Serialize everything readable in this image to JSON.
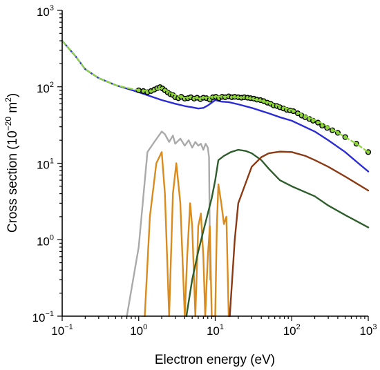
{
  "chart_data": {
    "type": "line",
    "xscale": "log",
    "yscale": "log",
    "xlim": [
      0.1,
      1000
    ],
    "ylim": [
      0.1,
      1000
    ],
    "xlabel": "Electron energy (eV)",
    "ylabel_prefix": "Cross section (10",
    "ylabel_exp1": "−20",
    "ylabel_mid": " m",
    "ylabel_exp2": "2",
    "ylabel_suffix": ")",
    "x_ticks": [
      {
        "base": "10",
        "exp": "−1"
      },
      {
        "base": "10",
        "exp": "0"
      },
      {
        "base": "10",
        "exp": "1"
      },
      {
        "base": "10",
        "exp": "2"
      },
      {
        "base": "10",
        "exp": "3"
      }
    ],
    "y_ticks": [
      {
        "base": "10",
        "exp": "−1"
      },
      {
        "base": "10",
        "exp": "0"
      },
      {
        "base": "10",
        "exp": "1"
      },
      {
        "base": "10",
        "exp": "2"
      },
      {
        "base": "10",
        "exp": "3"
      }
    ],
    "grid": false,
    "series": [
      {
        "color": "#2b2bd6",
        "style": "solid",
        "x": [
          0.1,
          0.15,
          0.2,
          0.3,
          0.5,
          0.7,
          1.0,
          1.5,
          2.0,
          3.0,
          4.0,
          5.0,
          6.0,
          7.0,
          8.0,
          9.0,
          10.0,
          12.0,
          15.0,
          20.0,
          30.0,
          50.0,
          70.0,
          100.0,
          200.0,
          300.0,
          500.0,
          700.0,
          1000.0
        ],
        "y": [
          400,
          250,
          170,
          130,
          105,
          95,
          85,
          74,
          67,
          60,
          56,
          54,
          52,
          53,
          57,
          62,
          67,
          64,
          63,
          59,
          53,
          45,
          40,
          36,
          26,
          20,
          14,
          10.5,
          7.8
        ]
      },
      {
        "color": "#8fd63c",
        "style": "dashed",
        "x": [
          0.1,
          0.15,
          0.2,
          0.3,
          0.5,
          0.7,
          1.0,
          1.5,
          2.0,
          3.0,
          4.0,
          5.0,
          6.0,
          7.0,
          8.0,
          9.0,
          10.0,
          12.0,
          15.0,
          20.0,
          30.0,
          50.0,
          70.0,
          100.0,
          200.0,
          300.0,
          500.0,
          700.0,
          1000.0
        ],
        "y": [
          400,
          250,
          170,
          130,
          105,
          97,
          90,
          88,
          96,
          78,
          72,
          73,
          71,
          72,
          73,
          74,
          74,
          75,
          74,
          73,
          70,
          62,
          56,
          50,
          37,
          30,
          22,
          18,
          14
        ]
      },
      {
        "color": "#000000",
        "style": "markers",
        "marker_fill": "#8fd63c",
        "x": [
          1.0,
          1.15,
          1.3,
          1.45,
          1.6,
          1.75,
          1.9,
          2.05,
          2.2,
          2.4,
          2.6,
          2.8,
          3.0,
          3.3,
          3.6,
          4.0,
          4.4,
          4.8,
          5.3,
          5.8,
          6.4,
          7.0,
          7.7,
          8.5,
          9.3,
          10.2,
          11.2,
          12.3,
          13.5,
          15.0,
          16.5,
          18.0,
          20.0,
          22.0,
          24.0,
          26.5,
          29.0,
          32.0,
          35.0,
          39.0,
          43.0,
          48.0,
          53.0,
          58.0,
          64.0,
          70.0,
          78.0,
          86.0,
          95.0,
          105.0,
          120.0,
          135.0,
          150.0,
          170.0,
          190.0,
          220.0,
          250.0,
          290.0,
          340.0,
          400.0,
          500.0,
          700.0,
          1000.0
        ],
        "y": [
          90,
          88,
          85,
          88,
          92,
          96,
          99,
          95,
          90,
          84,
          80,
          78,
          73,
          71,
          74,
          70,
          71,
          73,
          70,
          72,
          69,
          72,
          71,
          68,
          73,
          74,
          71,
          74,
          73,
          75,
          73,
          74,
          73,
          72,
          73,
          72,
          71,
          70,
          68,
          67,
          65,
          62,
          60,
          57,
          56,
          54,
          52,
          50,
          49,
          48,
          45,
          42,
          40,
          38,
          36,
          34,
          31,
          29,
          27,
          25,
          22,
          18,
          14
        ]
      },
      {
        "color": "#aaaaaa",
        "style": "solid",
        "x": [
          0.7,
          1.0,
          1.3,
          1.6,
          2.0,
          2.2,
          2.5,
          2.8,
          3.0,
          3.5,
          4.0,
          4.5,
          5.0,
          5.5,
          6.0,
          6.5,
          7.0,
          7.5,
          8.0,
          8.3,
          8.6
        ],
        "y": [
          0.1,
          0.8,
          14,
          19,
          26,
          24,
          19,
          23,
          18,
          21,
          17,
          20,
          16,
          19,
          17,
          18,
          15,
          18,
          16,
          12,
          0.3
        ]
      },
      {
        "color": "#d98b1e",
        "style": "solid",
        "x": [
          1.2,
          1.4,
          1.7,
          2.0,
          2.2,
          2.5,
          2.8,
          3.1,
          3.5,
          4.0,
          4.3,
          4.7,
          5.0,
          5.5,
          6.0,
          6.5,
          7.0,
          7.4,
          8.0,
          8.5,
          9.0,
          10.0,
          10.5,
          11.0,
          12.0,
          13.0,
          14.0,
          15.0
        ],
        "y": [
          0.1,
          2,
          10,
          14,
          4,
          0.1,
          4,
          10,
          3,
          0.1,
          0.6,
          3,
          1.5,
          0.1,
          1.5,
          2.2,
          0.6,
          0.1,
          0.6,
          1.5,
          0.1,
          0.1,
          1.5,
          5.3,
          3,
          1.6,
          2,
          0.1
        ]
      },
      {
        "color": "#2e5e2c",
        "style": "solid",
        "x": [
          4.2,
          5.0,
          6.0,
          7.0,
          8.0,
          9.0,
          10.0,
          11.0,
          13.0,
          16.0,
          20.0,
          25.0,
          30.0,
          40.0,
          50.0,
          70.0,
          100.0,
          200.0,
          300.0,
          500.0,
          1000.0
        ],
        "y": [
          0.1,
          0.3,
          0.7,
          1.3,
          2.2,
          3.5,
          6,
          11,
          12.5,
          14,
          15,
          14.5,
          13.5,
          11,
          8.5,
          6,
          5,
          3.7,
          2.8,
          2.1,
          1.45
        ]
      },
      {
        "color": "#8b3a14",
        "style": "solid",
        "x": [
          15.5,
          18.0,
          20.0,
          25.0,
          30.0,
          40.0,
          50.0,
          70.0,
          100.0,
          150.0,
          200.0,
          300.0,
          500.0,
          1000.0
        ],
        "y": [
          0.1,
          1.0,
          3.0,
          5.5,
          9,
          12,
          13.5,
          14.2,
          14,
          12.5,
          11,
          9,
          6.7,
          4.4
        ]
      }
    ]
  }
}
